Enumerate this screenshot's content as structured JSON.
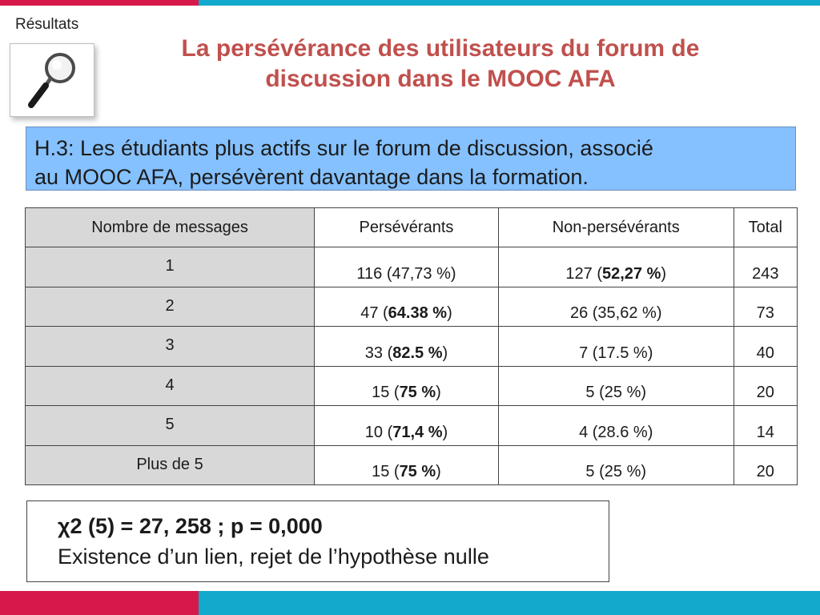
{
  "section": "Résultats",
  "title_line1": "La persévérance des utilisateurs du forum de",
  "title_line2": "discussion dans le MOOC AFA",
  "hypothesis_line1": "H.3: Les étudiants plus actifs sur le forum de discussion, associé",
  "hypothesis_line2": "au MOOC AFA, persévèrent davantage dans la formation.",
  "table": {
    "headers": [
      "Nombre de messages",
      "Persévérants",
      "Non-persévérants",
      "Total"
    ],
    "rows": [
      {
        "n": "1",
        "p_num": "116",
        "p_pct": "47,73 %",
        "p_bold": false,
        "np_num": "127",
        "np_pct": "52,27 %",
        "np_bold": true,
        "total": "243"
      },
      {
        "n": "2",
        "p_num": "47",
        "p_pct": "64.38 %",
        "p_bold": true,
        "np_num": "26",
        "np_pct": "35,62 %",
        "np_bold": false,
        "total": "73"
      },
      {
        "n": "3",
        "p_num": "33",
        "p_pct": "82.5 %",
        "p_bold": true,
        "np_num": "7",
        "np_pct": "17.5 %",
        "np_bold": false,
        "total": "40"
      },
      {
        "n": "4",
        "p_num": "15",
        "p_pct": "75 %",
        "p_bold": true,
        "np_num": "5",
        "np_pct": "25 %",
        "np_bold": false,
        "total": "20"
      },
      {
        "n": "5",
        "p_num": "10",
        "p_pct": "71,4 %",
        "p_bold": true,
        "np_num": "4",
        "np_pct": "28.6 %",
        "np_bold": false,
        "total": "14"
      },
      {
        "n": "Plus de 5",
        "p_num": "15",
        "p_pct": "75 %",
        "p_bold": true,
        "np_num": "5",
        "np_pct": "25 %",
        "np_bold": false,
        "total": "20"
      }
    ]
  },
  "stat_line1": "χ2 (5) = 27, 258 ; p = 0,000",
  "stat_line2": "Existence d’un lien, rejet de l’hypothèse nulle",
  "colors": {
    "red": "#d6194a",
    "blue": "#13a9cc",
    "title": "#c0504d",
    "hypo_bg": "#85c1ff"
  },
  "icons": [
    "magnifier-icon"
  ]
}
